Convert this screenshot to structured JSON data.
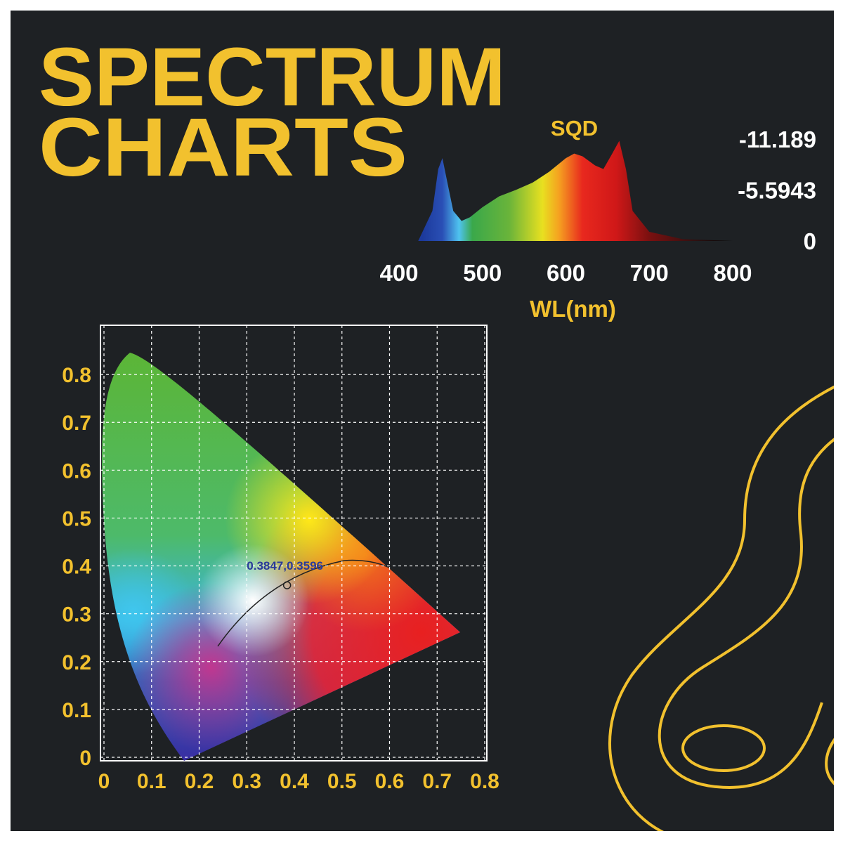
{
  "header": {
    "title": [
      "SPECTRUM",
      "CHARTS"
    ]
  },
  "chart_data": [
    {
      "type": "area",
      "title": "SQD",
      "x_label": "WL(nm)",
      "x": [
        423,
        440,
        447,
        452,
        458,
        465,
        475,
        485,
        500,
        520,
        540,
        560,
        580,
        600,
        610,
        620,
        635,
        645,
        655,
        664,
        672,
        680,
        700,
        740,
        800
      ],
      "values": [
        0,
        -3.3,
        -7.9,
        -9.1,
        -6.4,
        -3.3,
        -2.2,
        -2.6,
        -3.7,
        -4.9,
        -5.6,
        -6.4,
        -7.6,
        -9.1,
        -9.6,
        -9.3,
        -8.3,
        -7.9,
        -9.5,
        -11.0,
        -7.9,
        -3.3,
        -1.0,
        -0.2,
        0
      ],
      "xlim": [
        400,
        800
      ],
      "xticks": [
        400,
        500,
        600,
        700,
        800
      ],
      "ylim": [
        0,
        -11.189
      ],
      "yticks": [
        -11.189,
        -5.5943,
        0
      ]
    },
    {
      "type": "scatter",
      "x": [
        0.3847
      ],
      "values": [
        0.3596
      ],
      "value_labels": [
        "0.3847,0.3596"
      ],
      "xlim": [
        0,
        0.8
      ],
      "xticks": [
        0,
        0.1,
        0.2,
        0.3,
        0.4,
        0.5,
        0.6,
        0.7,
        0.8
      ],
      "ylim": [
        0,
        0.9
      ],
      "yticks": [
        0,
        0.1,
        0.2,
        0.3,
        0.4,
        0.5,
        0.6,
        0.7,
        0.8
      ],
      "grid": true
    }
  ]
}
